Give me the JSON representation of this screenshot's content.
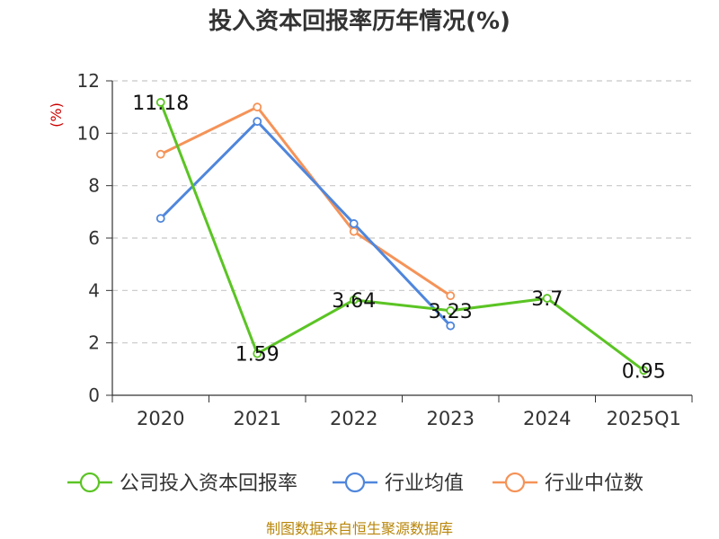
{
  "chart_data": {
    "type": "line",
    "title": "投入资本回报率历年情况(%)",
    "ylabel": "(%)",
    "xlabel": "",
    "categories": [
      "2020",
      "2021",
      "2022",
      "2023",
      "2024",
      "2025Q1"
    ],
    "ylim": [
      0,
      12
    ],
    "yticks": [
      "0",
      "2",
      "4",
      "6",
      "8",
      "10",
      "12"
    ],
    "grid": true,
    "legend_position": "bottom",
    "series": [
      {
        "name": "公司投入资本回报率",
        "color": "#5bc424",
        "values": [
          11.18,
          1.59,
          3.64,
          3.23,
          3.7,
          0.95
        ],
        "labels": [
          "11.18",
          "1.59",
          "3.64",
          "3.23",
          "3.7",
          "0.95"
        ]
      },
      {
        "name": "行业均值",
        "color": "#4f86dc",
        "values": [
          6.75,
          10.45,
          6.55,
          2.65,
          null,
          null
        ]
      },
      {
        "name": "行业中位数",
        "color": "#f59358",
        "values": [
          9.2,
          11.0,
          6.25,
          3.8,
          null,
          null
        ]
      }
    ],
    "source": "制图数据来自恒生聚源数据库"
  }
}
